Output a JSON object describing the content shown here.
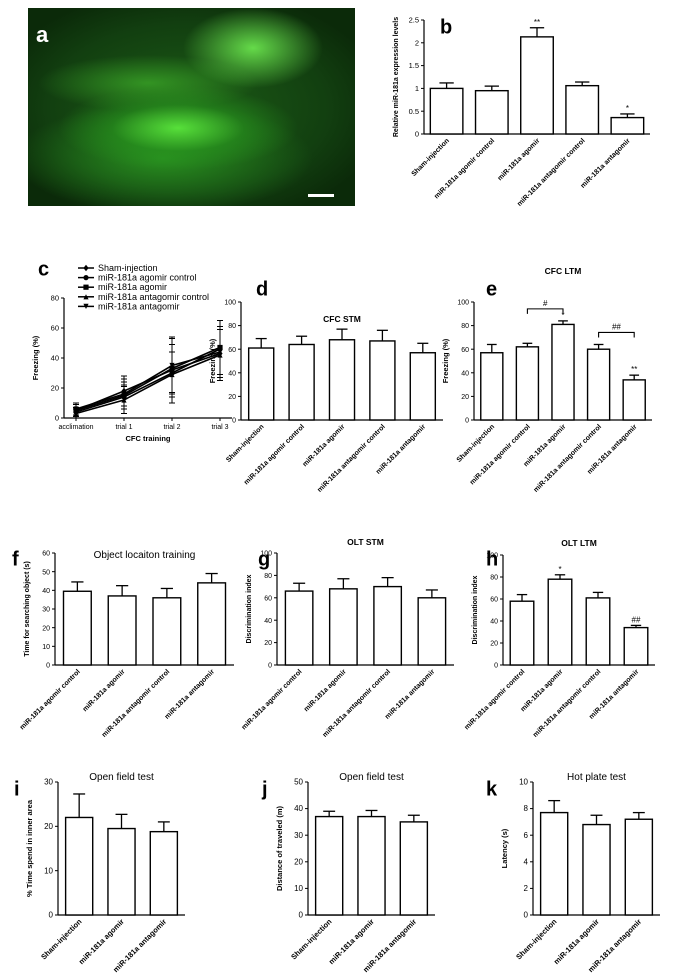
{
  "panel_a": {
    "label": "a"
  },
  "chart_data": [
    {
      "id": "b",
      "panel_label": "b",
      "type": "bar",
      "title": "",
      "xlabel": "",
      "ylabel": "Relative miR-181a expression levels",
      "ylim": [
        0,
        2.5
      ],
      "yticks": [
        0.0,
        0.5,
        1.0,
        1.5,
        2.0,
        2.5
      ],
      "categories": [
        "Sham-injection",
        "miR-181a agomir control",
        "miR-181a agomir",
        "miR-181a antagomir control",
        "miR-181a antagomir"
      ],
      "values": [
        1.0,
        0.95,
        2.13,
        1.06,
        0.36
      ],
      "errors": [
        0.12,
        0.1,
        0.2,
        0.08,
        0.08
      ],
      "marks": [
        "",
        "",
        "**",
        "",
        "*"
      ]
    },
    {
      "id": "c",
      "panel_label": "c",
      "type": "line",
      "title": "",
      "xlabel": "CFC training",
      "ylabel": "Freezing (%)",
      "ylim": [
        0,
        80
      ],
      "yticks": [
        0,
        20,
        40,
        60,
        80
      ],
      "x": [
        "acclimation",
        "trial 1",
        "trial 2",
        "trial 3"
      ],
      "series": [
        {
          "name": "Sham-injection",
          "values": [
            5,
            18,
            32,
            43
          ],
          "errors": [
            4,
            10,
            22,
            18
          ]
        },
        {
          "name": "miR-181a agomir control",
          "values": [
            4,
            14,
            30,
            46
          ],
          "errors": [
            3,
            8,
            14,
            19
          ]
        },
        {
          "name": "miR-181a agomir",
          "values": [
            5,
            15,
            33,
            47
          ],
          "errors": [
            4,
            9,
            16,
            18
          ]
        },
        {
          "name": "miR-181a antagomir control",
          "values": [
            3,
            12,
            29,
            42
          ],
          "errors": [
            3,
            9,
            15,
            17
          ]
        },
        {
          "name": "miR-181a antagomir",
          "values": [
            6,
            16,
            35,
            44
          ],
          "errors": [
            4,
            10,
            18,
            17
          ]
        }
      ]
    },
    {
      "id": "d",
      "panel_label": "d",
      "type": "bar",
      "title": "CFC STM",
      "xlabel": "",
      "ylabel": "Freezing (%)",
      "ylim": [
        0,
        100
      ],
      "yticks": [
        0,
        20,
        40,
        60,
        80,
        100
      ],
      "categories": [
        "Sham-injection",
        "miR-181a agomir control",
        "miR-181a agomir",
        "miR-181a antagomir control",
        "miR-181a antagomir"
      ],
      "values": [
        61,
        64,
        68,
        67,
        57
      ],
      "errors": [
        8,
        7,
        9,
        9,
        8
      ],
      "marks": [
        "",
        "",
        "",
        "",
        ""
      ]
    },
    {
      "id": "e",
      "panel_label": "e",
      "type": "bar",
      "title": "CFC LTM",
      "xlabel": "",
      "ylabel": "Freezing (%)",
      "ylim": [
        0,
        100
      ],
      "yticks": [
        0,
        20,
        40,
        60,
        80,
        100
      ],
      "categories": [
        "Sham-injection",
        "miR-181a agomir control",
        "miR-181a agomir",
        "miR-181a antagomir control",
        "miR-181a antagomir"
      ],
      "values": [
        57,
        62,
        81,
        60,
        34
      ],
      "errors": [
        7,
        3,
        3,
        4,
        4
      ],
      "marks": [
        "",
        "",
        "*",
        "",
        "**"
      ],
      "brackets": [
        {
          "from": 1,
          "to": 2,
          "label": "#"
        },
        {
          "from": 3,
          "to": 4,
          "label": "##"
        }
      ]
    },
    {
      "id": "f",
      "panel_label": "f",
      "type": "bar",
      "title": "Object locaiton training",
      "xlabel": "",
      "ylabel": "Time for searching object (s)",
      "ylim": [
        0,
        60
      ],
      "yticks": [
        0,
        10,
        20,
        30,
        40,
        50,
        60
      ],
      "categories": [
        "miR-181a agomir control",
        "miR-181a agomir",
        "miR-181a antagomir control",
        "miR-181a antagomir"
      ],
      "values": [
        39.5,
        37,
        36,
        44
      ],
      "errors": [
        5,
        5.5,
        5,
        5
      ],
      "marks": [
        "",
        "",
        "",
        ""
      ]
    },
    {
      "id": "g",
      "panel_label": "g",
      "type": "bar",
      "title": "OLT STM",
      "xlabel": "",
      "ylabel": "Discrimination index",
      "ylim": [
        0,
        100
      ],
      "yticks": [
        0,
        20,
        40,
        60,
        80,
        100
      ],
      "categories": [
        "miR-181a agomir control",
        "miR-181a agomir",
        "miR-181a antagomir control",
        "miR-181a antagomir"
      ],
      "values": [
        66,
        68,
        70,
        60
      ],
      "errors": [
        7,
        9,
        8,
        7
      ],
      "marks": [
        "",
        "",
        "",
        ""
      ]
    },
    {
      "id": "h",
      "panel_label": "h",
      "type": "bar",
      "title": "OLT LTM",
      "xlabel": "",
      "ylabel": "Discrimination index",
      "ylim": [
        0,
        100
      ],
      "yticks": [
        0,
        20,
        40,
        60,
        80,
        100
      ],
      "categories": [
        "miR-181a agomir control",
        "miR-181a agomir",
        "miR-181a antagomir control",
        "miR-181a antagomir"
      ],
      "values": [
        58,
        78,
        61,
        34
      ],
      "errors": [
        6,
        4,
        5,
        2
      ],
      "marks": [
        "",
        "*",
        "",
        "##"
      ]
    },
    {
      "id": "i",
      "panel_label": "i",
      "type": "bar",
      "title": "Open field test",
      "xlabel": "",
      "ylabel": "% Time spend in inner area",
      "ylim": [
        0,
        30
      ],
      "yticks": [
        0,
        10,
        20,
        30
      ],
      "categories": [
        "Sham-injection",
        "miR-181a agomir",
        "miR-181a antagomir"
      ],
      "values": [
        22,
        19.5,
        18.8
      ],
      "errors": [
        5.3,
        3.2,
        2.2
      ],
      "marks": [
        "",
        "",
        ""
      ]
    },
    {
      "id": "j",
      "panel_label": "j",
      "type": "bar",
      "title": "Open field test",
      "xlabel": "",
      "ylabel": "Distance of traveled (m)",
      "ylim": [
        0,
        50
      ],
      "yticks": [
        0,
        10,
        20,
        30,
        40,
        50
      ],
      "categories": [
        "Sham-injection",
        "miR-181a agomir",
        "miR-181a antagomir"
      ],
      "values": [
        37,
        37,
        35
      ],
      "errors": [
        2,
        2.3,
        2.5
      ],
      "marks": [
        "",
        "",
        ""
      ]
    },
    {
      "id": "k",
      "panel_label": "k",
      "type": "bar",
      "title": "Hot plate test",
      "xlabel": "",
      "ylabel": "Latency (s)",
      "ylim": [
        0,
        10
      ],
      "yticks": [
        0,
        2,
        4,
        6,
        8,
        10
      ],
      "categories": [
        "Sham-injection",
        "miR-181a agomir",
        "miR-181a antagomir"
      ],
      "values": [
        7.7,
        6.8,
        7.2
      ],
      "errors": [
        0.9,
        0.7,
        0.5
      ],
      "marks": [
        "",
        "",
        ""
      ]
    }
  ]
}
